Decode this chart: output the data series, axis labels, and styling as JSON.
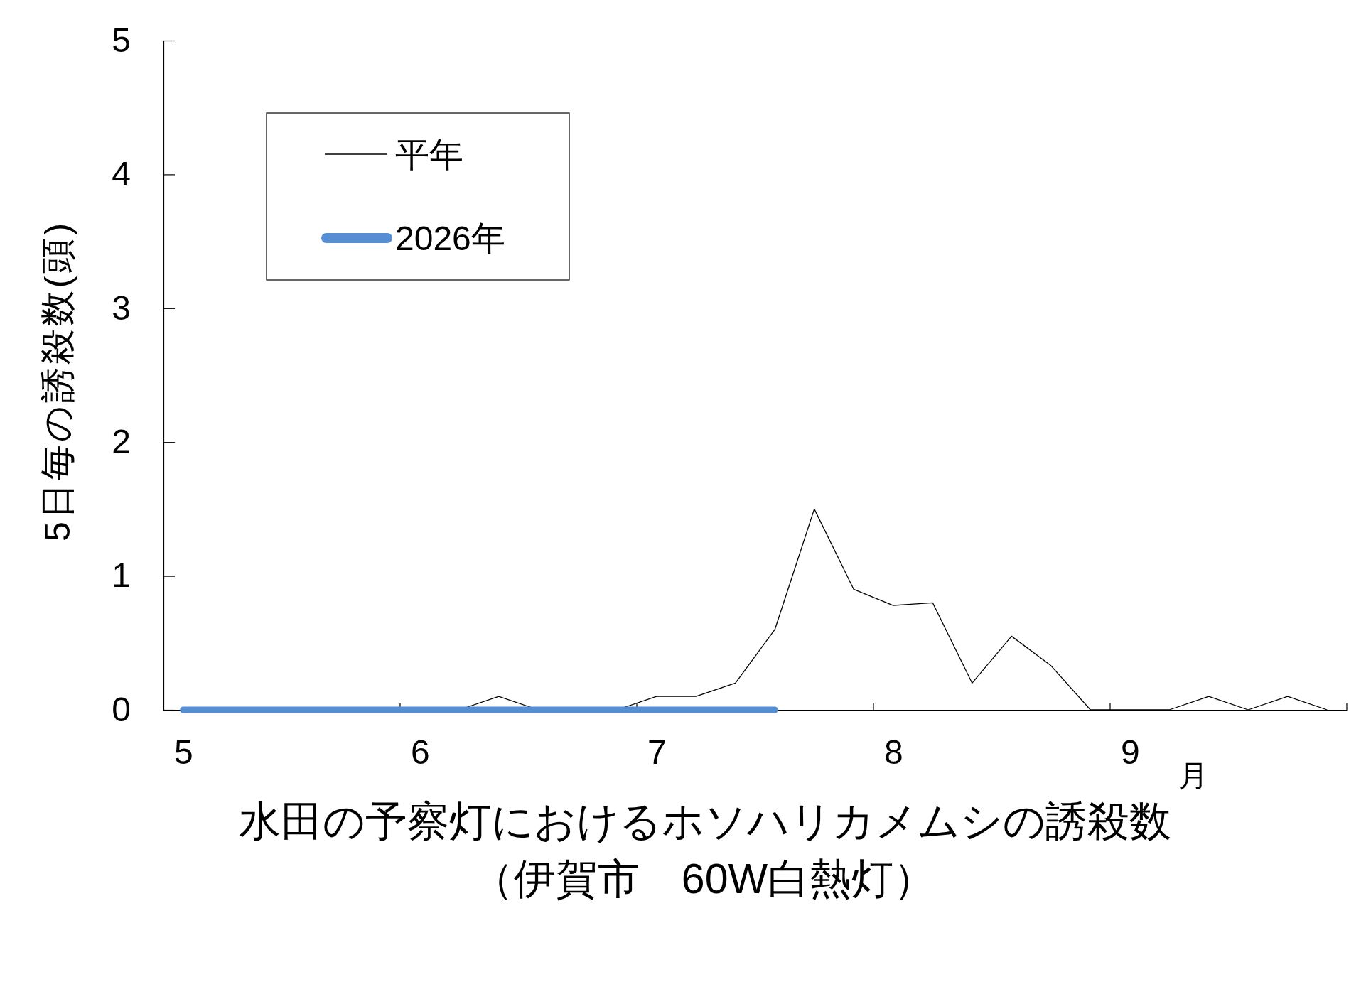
{
  "chart_data": {
    "type": "line",
    "title": "水田の予察灯におけるホソハリカメムシの誘殺数",
    "subtitle": "（伊賀市　60W白熱灯）",
    "xlabel": "月",
    "ylabel": "5日毎の誘殺数(頭)",
    "categories": [
      "5",
      null,
      null,
      null,
      null,
      null,
      "6",
      null,
      null,
      null,
      null,
      null,
      "7",
      null,
      null,
      null,
      null,
      null,
      "8",
      null,
      null,
      null,
      null,
      null,
      "9",
      null,
      null,
      null,
      null,
      null
    ],
    "series": [
      {
        "name": "平年",
        "color": "#000000",
        "values": [
          null,
          null,
          null,
          null,
          null,
          null,
          null,
          0,
          0.1,
          0,
          0,
          0,
          0.1,
          0.1,
          0.2,
          0.6,
          1.5,
          0.9,
          0.78,
          0.8,
          0.2,
          0.55,
          0.33,
          0,
          0,
          0,
          0.1,
          0,
          0.1,
          0
        ]
      },
      {
        "name": "2026年",
        "color": "#558ed5",
        "values": [
          0,
          0,
          0,
          0,
          0,
          0,
          0,
          0,
          0,
          0,
          0,
          0,
          0,
          0,
          0,
          0,
          null,
          null,
          null,
          null,
          null,
          null,
          null,
          null,
          null,
          null,
          null,
          null,
          null,
          null
        ]
      }
    ],
    "ylim": [
      0,
      5
    ],
    "yticks": [
      0,
      1,
      2,
      3,
      4,
      5
    ],
    "legend": "top left"
  }
}
